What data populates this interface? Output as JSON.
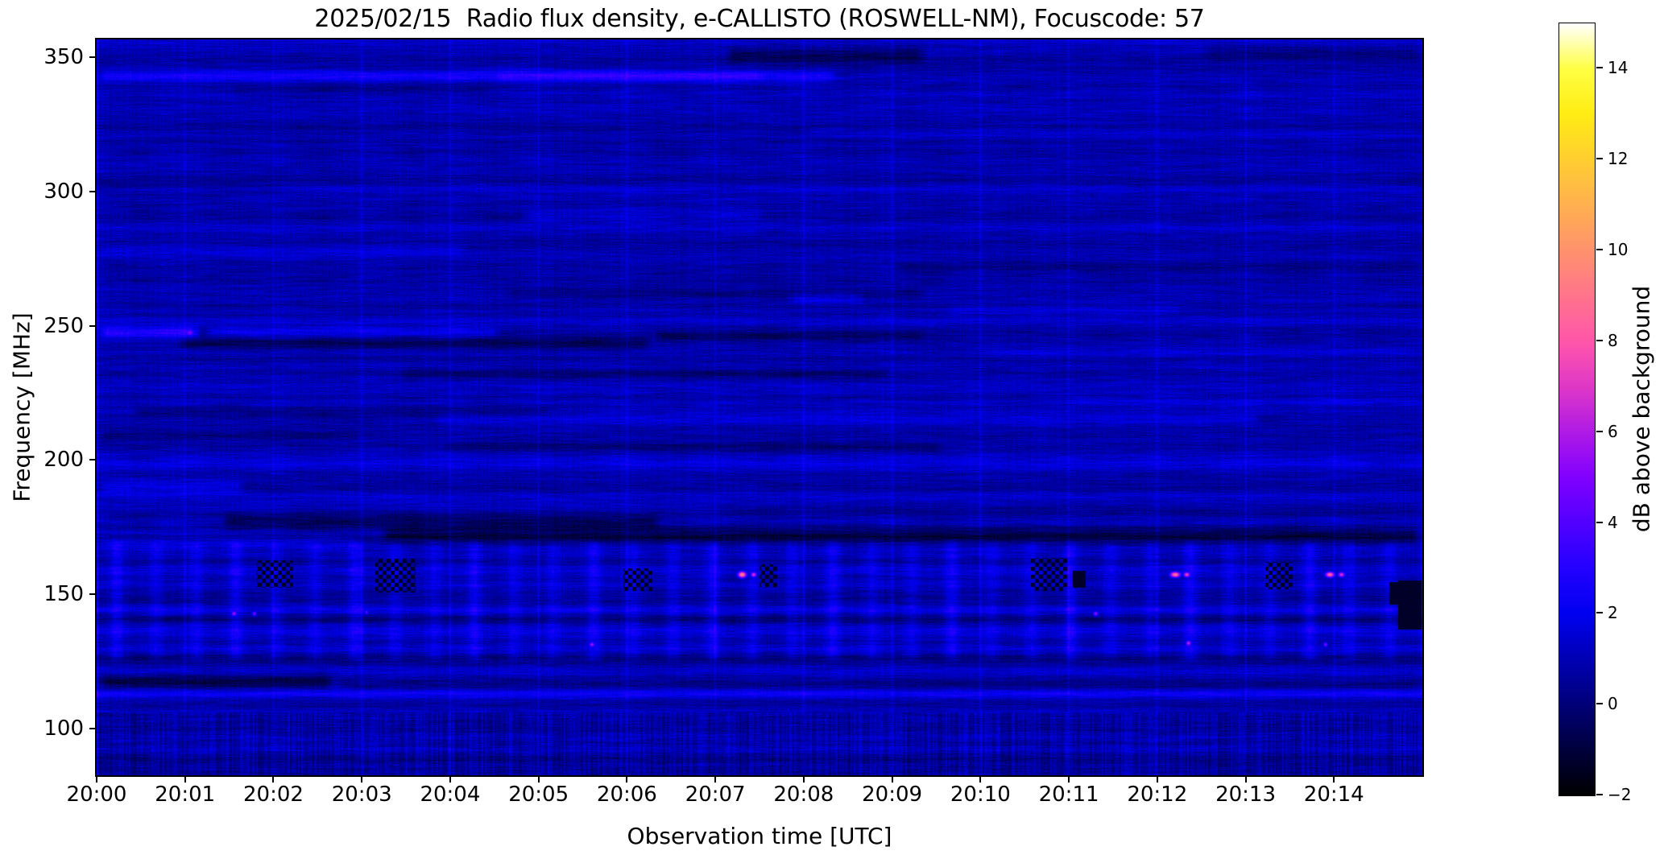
{
  "title": "2025/02/15  Radio flux density, e-CALLISTO (ROSWELL-NM), Focuscode: 57",
  "chart_data": {
    "type": "heatmap",
    "subtype": "radio-spectrogram",
    "title": "2025/02/15  Radio flux density, e-CALLISTO (ROSWELL-NM), Focuscode: 57",
    "xlabel": "Observation time [UTC]",
    "ylabel": "Frequency [MHz]",
    "colorbar_label": "dB above background",
    "x_ticks": [
      "20:00",
      "20:01",
      "20:02",
      "20:03",
      "20:04",
      "20:05",
      "20:06",
      "20:07",
      "20:08",
      "20:09",
      "20:10",
      "20:11",
      "20:12",
      "20:13",
      "20:14"
    ],
    "x_tick_minutes": [
      0,
      1,
      2,
      3,
      4,
      5,
      6,
      7,
      8,
      9,
      10,
      11,
      12,
      13,
      14
    ],
    "x_range_minutes": [
      0,
      15
    ],
    "y_ticks": [
      350,
      300,
      250,
      200,
      150,
      100
    ],
    "ylim": [
      82.7,
      356.5
    ],
    "grid": false,
    "colorbar": {
      "vmin": -2,
      "vmax": 15,
      "ticks": [
        -2,
        0,
        2,
        4,
        6,
        8,
        10,
        12,
        14
      ],
      "colormap": "gnuplot2",
      "stops": [
        {
          "v": -2,
          "c": "#000000"
        },
        {
          "v": -1,
          "c": "#00003c"
        },
        {
          "v": 0,
          "c": "#000078"
        },
        {
          "v": 1,
          "c": "#0000b4"
        },
        {
          "v": 2,
          "c": "#0000f0"
        },
        {
          "v": 3,
          "c": "#2300ff"
        },
        {
          "v": 4,
          "c": "#5200ff"
        },
        {
          "v": 5,
          "c": "#8100ff"
        },
        {
          "v": 6,
          "c": "#af1ae5"
        },
        {
          "v": 7,
          "c": "#df38c7"
        },
        {
          "v": 8,
          "c": "#ff56a9"
        },
        {
          "v": 9,
          "c": "#ff748b"
        },
        {
          "v": 10,
          "c": "#ff926d"
        },
        {
          "v": 11,
          "c": "#ffb04f"
        },
        {
          "v": 12,
          "c": "#ffce31"
        },
        {
          "v": 13,
          "c": "#ffec13"
        },
        {
          "v": 14,
          "c": "#ffff44"
        },
        {
          "v": 15,
          "c": "#ffffff"
        }
      ]
    },
    "noise": {
      "seed": 42,
      "base": 0.8,
      "row_jitter_amp": 0.35,
      "streak_amp": 0.5,
      "pixel_amp": 0.42,
      "column_amp": 0.18
    },
    "vertical_structure": {
      "minute_line_amp": 0.5,
      "minute_glow_amp": 0.3,
      "fence_band": [
        127,
        168
      ],
      "fence_period_min": 0.45,
      "fence_amp": 0.85,
      "grid_band_min_freq": 172,
      "grid_row_period_mhz": 23,
      "low_noise_band_max_freq": 106,
      "low_noise_amp": 0.55
    },
    "bands": [
      {
        "f": 343.0,
        "h": 1.6,
        "amp": 1.5,
        "t0": 0.0,
        "t1": 8.4
      },
      {
        "f": 343.0,
        "h": 1.4,
        "amp": 0.8,
        "t0": 4.5,
        "t1": 7.6
      },
      {
        "f": 350.5,
        "h": 2.2,
        "amp": -1.3,
        "t0": 7.1,
        "t1": 9.4
      },
      {
        "f": 351.5,
        "h": 1.8,
        "amp": -0.8,
        "t0": 12.5,
        "t1": 15.0
      },
      {
        "f": 355.5,
        "h": 1.2,
        "amp": 0.5,
        "t0": 0.0,
        "t1": 15.0
      },
      {
        "f": 338.0,
        "h": 1.6,
        "amp": -0.6,
        "t0": 1.5,
        "t1": 4.5
      },
      {
        "f": 331.0,
        "h": 1.4,
        "amp": 0.5,
        "t0": 0.0,
        "t1": 15.0
      },
      {
        "f": 322.0,
        "h": 1.4,
        "amp": 0.4,
        "t0": 8.0,
        "t1": 15.0
      },
      {
        "f": 311.0,
        "h": 1.4,
        "amp": 0.45,
        "t0": 0.0,
        "t1": 15.0
      },
      {
        "f": 301.0,
        "h": 1.4,
        "amp": 0.5,
        "t0": 2.0,
        "t1": 15.0
      },
      {
        "f": 291.0,
        "h": 1.5,
        "amp": 0.8,
        "t0": 4.8,
        "t1": 7.6
      },
      {
        "f": 286.0,
        "h": 1.4,
        "amp": 0.5,
        "t0": 0.0,
        "t1": 15.0
      },
      {
        "f": 278.0,
        "h": 1.6,
        "amp": 0.7,
        "t0": 0.0,
        "t1": 4.2
      },
      {
        "f": 272.0,
        "h": 1.5,
        "amp": -0.5,
        "t0": 9.0,
        "t1": 15.0
      },
      {
        "f": 262.0,
        "h": 1.6,
        "amp": -0.8,
        "t0": 4.6,
        "t1": 9.4
      },
      {
        "f": 260.0,
        "h": 1.6,
        "amp": 1.0,
        "t0": 7.8,
        "t1": 8.7
      },
      {
        "f": 256.0,
        "h": 1.4,
        "amp": 0.6,
        "t0": 9.6,
        "t1": 12.3
      },
      {
        "f": 251.0,
        "h": 1.3,
        "amp": 0.5,
        "t0": 0.0,
        "t1": 15.0
      },
      {
        "f": 247.5,
        "h": 1.5,
        "amp": 2.4,
        "t0": 0.0,
        "t1": 1.2
      },
      {
        "f": 247.5,
        "h": 1.4,
        "amp": 1.4,
        "t0": 1.2,
        "t1": 4.6
      },
      {
        "f": 243.5,
        "h": 1.6,
        "amp": -1.4,
        "t0": 0.9,
        "t1": 6.3
      },
      {
        "f": 246.0,
        "h": 1.4,
        "amp": -1.0,
        "t0": 6.3,
        "t1": 9.4
      },
      {
        "f": 240.0,
        "h": 1.4,
        "amp": 0.5,
        "t0": 10.0,
        "t1": 15.0
      },
      {
        "f": 232.0,
        "h": 1.4,
        "amp": -0.9,
        "t0": 3.4,
        "t1": 9.0
      },
      {
        "f": 228.0,
        "h": 1.3,
        "amp": 0.5,
        "t0": 0.0,
        "t1": 15.0
      },
      {
        "f": 222.0,
        "h": 1.3,
        "amp": 0.5,
        "t0": 11.0,
        "t1": 15.0
      },
      {
        "f": 218.0,
        "h": 1.4,
        "amp": -0.8,
        "t0": 0.4,
        "t1": 5.2
      },
      {
        "f": 215.0,
        "h": 1.5,
        "amp": 0.85,
        "t0": 3.8,
        "t1": 13.2
      },
      {
        "f": 209.0,
        "h": 1.4,
        "amp": -0.6,
        "t0": 0.0,
        "t1": 3.0
      },
      {
        "f": 205.0,
        "h": 1.4,
        "amp": -0.75,
        "t0": 3.9,
        "t1": 9.6
      },
      {
        "f": 199.0,
        "h": 1.3,
        "amp": 0.5,
        "t0": 0.0,
        "t1": 15.0
      },
      {
        "f": 190.0,
        "h": 1.8,
        "amp": 1.2,
        "t0": 0.0,
        "t1": 1.7
      },
      {
        "f": 186.0,
        "h": 1.4,
        "amp": 0.6,
        "t0": 0.0,
        "t1": 15.0
      },
      {
        "f": 182.0,
        "h": 1.4,
        "amp": -0.5,
        "t0": 7.0,
        "t1": 15.0
      },
      {
        "f": 177.0,
        "h": 1.9,
        "amp": -1.5,
        "t0": 1.4,
        "t1": 6.4
      },
      {
        "f": 172.0,
        "h": 1.9,
        "amp": -1.7,
        "t0": 3.2,
        "t1": 15.0
      },
      {
        "f": 169.0,
        "h": 1.4,
        "amp": 0.7,
        "t0": 0.0,
        "t1": 3.0
      },
      {
        "f": 164.0,
        "h": 1.4,
        "amp": 0.4,
        "t0": 0.0,
        "t1": 15.0
      },
      {
        "f": 158.0,
        "h": 1.8,
        "amp": 0.5,
        "t0": 0.0,
        "t1": 15.0
      },
      {
        "f": 154.0,
        "h": 1.3,
        "amp": 0.35,
        "t0": 0.0,
        "t1": 15.0
      },
      {
        "f": 150.5,
        "h": 1.5,
        "amp": -0.5,
        "t0": 0.0,
        "t1": 15.0
      },
      {
        "f": 145.0,
        "h": 1.8,
        "amp": 0.45,
        "t0": 0.0,
        "t1": 15.0
      },
      {
        "f": 141.0,
        "h": 1.3,
        "amp": -0.3,
        "t0": 0.0,
        "t1": 15.0
      },
      {
        "f": 137.0,
        "h": 1.3,
        "amp": 0.35,
        "t0": 0.0,
        "t1": 15.0
      },
      {
        "f": 131.0,
        "h": 1.6,
        "amp": 0.5,
        "t0": 0.0,
        "t1": 15.0
      },
      {
        "f": 127.0,
        "h": 1.3,
        "amp": -0.4,
        "t0": 0.0,
        "t1": 15.0
      },
      {
        "f": 121.0,
        "h": 1.4,
        "amp": 0.45,
        "t0": 0.0,
        "t1": 15.0
      },
      {
        "f": 117.5,
        "h": 1.7,
        "amp": -1.5,
        "t0": 0.0,
        "t1": 2.7
      },
      {
        "f": 116.0,
        "h": 1.4,
        "amp": -0.5,
        "t0": 2.7,
        "t1": 15.0
      },
      {
        "f": 113.0,
        "h": 1.3,
        "amp": 1.9,
        "t0": 0.0,
        "t1": 15.0
      },
      {
        "f": 110.0,
        "h": 1.3,
        "amp": -0.5,
        "t0": 0.0,
        "t1": 15.0
      },
      {
        "f": 104.0,
        "h": 1.3,
        "amp": 0.4,
        "t0": 0.0,
        "t1": 15.0
      },
      {
        "f": 97.0,
        "h": 1.3,
        "amp": 0.5,
        "t0": 0.0,
        "t1": 15.0
      },
      {
        "f": 92.5,
        "h": 1.3,
        "amp": 0.45,
        "t0": 0.0,
        "t1": 15.0
      },
      {
        "f": 88.0,
        "h": 1.3,
        "amp": -0.3,
        "t0": 0.0,
        "t1": 15.0
      }
    ],
    "hot_spots": [
      {
        "t": 1.05,
        "f": 247.5,
        "rx": 0.05,
        "ry": 1.2,
        "v": 5.0
      },
      {
        "t": 7.3,
        "f": 157.5,
        "rx": 0.05,
        "ry": 1.2,
        "v": 9.5
      },
      {
        "t": 7.43,
        "f": 157.5,
        "rx": 0.035,
        "ry": 1.0,
        "v": 7.0
      },
      {
        "t": 12.2,
        "f": 157.5,
        "rx": 0.06,
        "ry": 1.1,
        "v": 9.0
      },
      {
        "t": 12.33,
        "f": 157.5,
        "rx": 0.04,
        "ry": 1.0,
        "v": 7.5
      },
      {
        "t": 13.95,
        "f": 157.5,
        "rx": 0.055,
        "ry": 1.1,
        "v": 8.5
      },
      {
        "t": 14.08,
        "f": 157.5,
        "rx": 0.04,
        "ry": 1.0,
        "v": 7.0
      },
      {
        "t": 1.55,
        "f": 143.0,
        "rx": 0.03,
        "ry": 0.9,
        "v": 6.0
      },
      {
        "t": 1.78,
        "f": 143.0,
        "rx": 0.025,
        "ry": 0.9,
        "v": 5.0
      },
      {
        "t": 3.05,
        "f": 143.5,
        "rx": 0.02,
        "ry": 0.8,
        "v": 4.5
      },
      {
        "t": 5.6,
        "f": 131.5,
        "rx": 0.03,
        "ry": 0.9,
        "v": 6.0
      },
      {
        "t": 11.3,
        "f": 143.0,
        "rx": 0.03,
        "ry": 0.9,
        "v": 5.5
      },
      {
        "t": 12.35,
        "f": 132.0,
        "rx": 0.03,
        "ry": 1.0,
        "v": 6.5
      },
      {
        "t": 13.9,
        "f": 131.5,
        "rx": 0.025,
        "ry": 0.9,
        "v": 5.0
      }
    ],
    "dark_spots": [
      {
        "t": 2.02,
        "f": 157.5,
        "rx": 0.2,
        "ry": 5.0,
        "checker": true
      },
      {
        "t": 3.38,
        "f": 157.0,
        "rx": 0.22,
        "ry": 6.0,
        "checker": true
      },
      {
        "t": 6.12,
        "f": 155.5,
        "rx": 0.16,
        "ry": 4.0,
        "checker": true
      },
      {
        "t": 7.6,
        "f": 157.0,
        "rx": 0.1,
        "ry": 4.0,
        "checker": true
      },
      {
        "t": 10.78,
        "f": 157.5,
        "rx": 0.2,
        "ry": 6.0,
        "checker": true
      },
      {
        "t": 11.12,
        "f": 155.5,
        "rx": 0.07,
        "ry": 3.0,
        "checker": false
      },
      {
        "t": 13.38,
        "f": 157.0,
        "rx": 0.15,
        "ry": 5.0,
        "checker": true
      },
      {
        "t": 14.86,
        "f": 146.0,
        "rx": 0.13,
        "ry": 9.0,
        "checker": false
      },
      {
        "t": 14.68,
        "f": 150.5,
        "rx": 0.05,
        "ry": 4.0,
        "checker": false
      }
    ]
  }
}
